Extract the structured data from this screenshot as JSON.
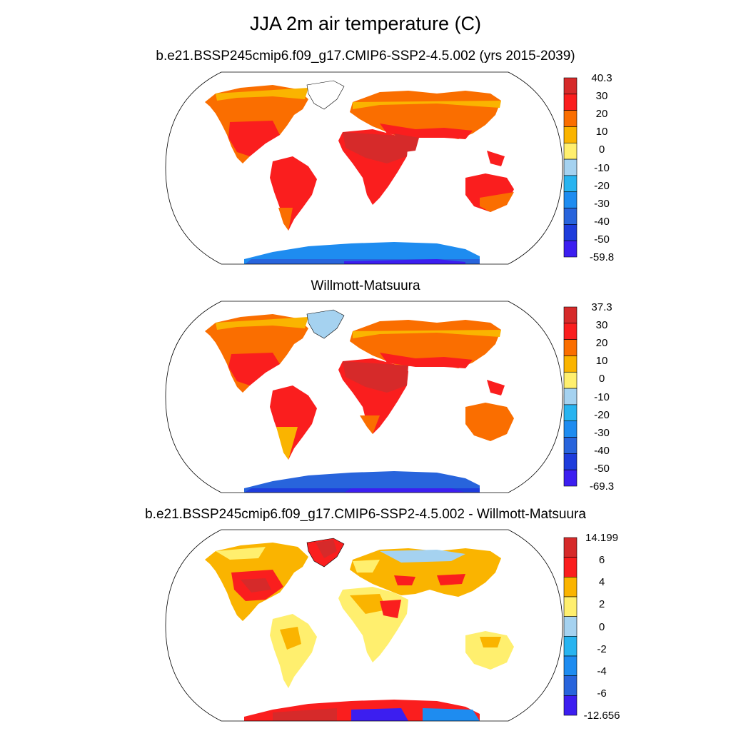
{
  "figure": {
    "title": "JJA 2m air temperature (C)"
  },
  "panels": [
    {
      "title": "b.e21.BSSP245cmip6.f09_g17.CMIP6-SSP2-4.5.002 (yrs 2015-2039)",
      "colorbar": {
        "labels": [
          "40.3",
          "30",
          "20",
          "10",
          "0",
          "-10",
          "-20",
          "-30",
          "-40",
          "-50",
          "-59.8"
        ],
        "colors": [
          "#d62a2a",
          "#fa1e1e",
          "#fa6e00",
          "#fab400",
          "#ffef6e",
          "#a5d2f0",
          "#28b4f0",
          "#1e8cf0",
          "#2864dc",
          "#1e3cdc",
          "#3c1ef0"
        ]
      }
    },
    {
      "title": "Willmott-Matsuura",
      "colorbar": {
        "labels": [
          "37.3",
          "30",
          "20",
          "10",
          "0",
          "-10",
          "-20",
          "-30",
          "-40",
          "-50",
          "-69.3"
        ],
        "colors": [
          "#d62a2a",
          "#fa1e1e",
          "#fa6e00",
          "#fab400",
          "#ffef6e",
          "#a5d2f0",
          "#28b4f0",
          "#1e8cf0",
          "#2864dc",
          "#1e3cdc",
          "#3c1ef0"
        ]
      }
    },
    {
      "title": "b.e21.BSSP245cmip6.f09_g17.CMIP6-SSP2-4.5.002 - Willmott-Matsuura",
      "colorbar": {
        "labels": [
          "14.199",
          "6",
          "4",
          "2",
          "0",
          "-2",
          "-4",
          "-6",
          "-12.656"
        ],
        "colors": [
          "#d62a2a",
          "#fa1e1e",
          "#fab400",
          "#ffef6e",
          "#a5d2f0",
          "#28b4f0",
          "#1e8cf0",
          "#2864dc",
          "#3c1ef0"
        ]
      }
    }
  ]
}
